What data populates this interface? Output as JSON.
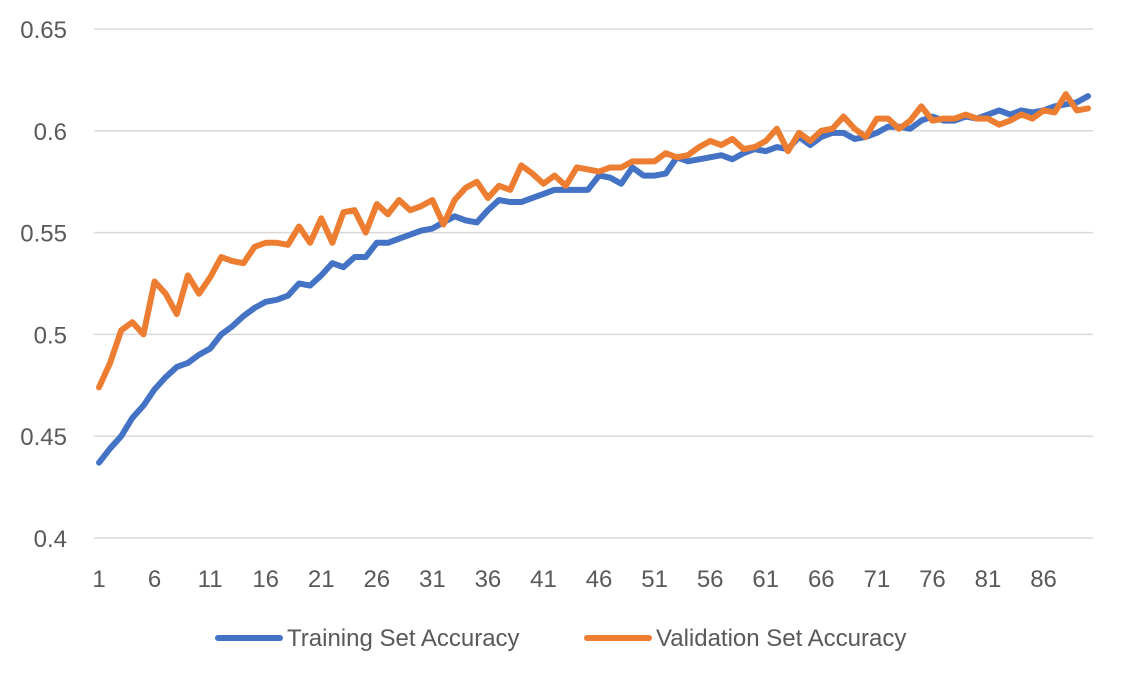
{
  "chart_data": {
    "type": "line",
    "title": "",
    "xlabel": "",
    "ylabel": "",
    "ylim": [
      0.4,
      0.65
    ],
    "yticks": [
      "0.4",
      "0.45",
      "0.5",
      "0.55",
      "0.6",
      "0.65"
    ],
    "ytick_values": [
      0.4,
      0.45,
      0.5,
      0.55,
      0.6,
      0.65
    ],
    "xlim": [
      1,
      90
    ],
    "xticks": [
      "1",
      "6",
      "11",
      "16",
      "21",
      "26",
      "31",
      "36",
      "41",
      "46",
      "51",
      "56",
      "61",
      "66",
      "71",
      "76",
      "81",
      "86"
    ],
    "xtick_values": [
      1,
      6,
      11,
      16,
      21,
      26,
      31,
      36,
      41,
      46,
      51,
      56,
      61,
      66,
      71,
      76,
      81,
      86
    ],
    "grid": true,
    "legend_position": "bottom",
    "series": [
      {
        "name": "Training Set Accuracy",
        "color": "#4472c4",
        "x": [
          1,
          2,
          3,
          4,
          5,
          6,
          7,
          8,
          9,
          10,
          11,
          12,
          13,
          14,
          15,
          16,
          17,
          18,
          19,
          20,
          21,
          22,
          23,
          24,
          25,
          26,
          27,
          28,
          29,
          30,
          31,
          32,
          33,
          34,
          35,
          36,
          37,
          38,
          39,
          40,
          41,
          42,
          43,
          44,
          45,
          46,
          47,
          48,
          49,
          50,
          51,
          52,
          53,
          54,
          55,
          56,
          57,
          58,
          59,
          60,
          61,
          62,
          63,
          64,
          65,
          66,
          67,
          68,
          69,
          70,
          71,
          72,
          73,
          74,
          75,
          76,
          77,
          78,
          79,
          80,
          81,
          82,
          83,
          84,
          85,
          86,
          87,
          88,
          89,
          90
        ],
        "values": [
          0.437,
          0.444,
          0.45,
          0.459,
          0.465,
          0.473,
          0.479,
          0.484,
          0.486,
          0.49,
          0.493,
          0.5,
          0.504,
          0.509,
          0.513,
          0.516,
          0.517,
          0.519,
          0.525,
          0.524,
          0.529,
          0.535,
          0.533,
          0.538,
          0.538,
          0.545,
          0.545,
          0.547,
          0.549,
          0.551,
          0.552,
          0.555,
          0.558,
          0.556,
          0.555,
          0.561,
          0.566,
          0.565,
          0.565,
          0.567,
          0.569,
          0.571,
          0.571,
          0.571,
          0.571,
          0.578,
          0.577,
          0.574,
          0.582,
          0.578,
          0.578,
          0.579,
          0.587,
          0.585,
          0.586,
          0.587,
          0.588,
          0.586,
          0.589,
          0.591,
          0.59,
          0.592,
          0.591,
          0.597,
          0.593,
          0.597,
          0.599,
          0.599,
          0.596,
          0.597,
          0.599,
          0.602,
          0.602,
          0.601,
          0.605,
          0.607,
          0.605,
          0.605,
          0.607,
          0.606,
          0.608,
          0.61,
          0.608,
          0.61,
          0.609,
          0.61,
          0.612,
          0.613,
          0.614,
          0.617
        ]
      },
      {
        "name": "Validation Set Accuracy",
        "color": "#ed7d31",
        "x": [
          1,
          2,
          3,
          4,
          5,
          6,
          7,
          8,
          9,
          10,
          11,
          12,
          13,
          14,
          15,
          16,
          17,
          18,
          19,
          20,
          21,
          22,
          23,
          24,
          25,
          26,
          27,
          28,
          29,
          30,
          31,
          32,
          33,
          34,
          35,
          36,
          37,
          38,
          39,
          40,
          41,
          42,
          43,
          44,
          45,
          46,
          47,
          48,
          49,
          50,
          51,
          52,
          53,
          54,
          55,
          56,
          57,
          58,
          59,
          60,
          61,
          62,
          63,
          64,
          65,
          66,
          67,
          68,
          69,
          70,
          71,
          72,
          73,
          74,
          75,
          76,
          77,
          78,
          79,
          80,
          81,
          82,
          83,
          84,
          85,
          86,
          87,
          88,
          89,
          90
        ],
        "values": [
          0.474,
          0.486,
          0.502,
          0.506,
          0.5,
          0.526,
          0.52,
          0.51,
          0.529,
          0.52,
          0.528,
          0.538,
          0.536,
          0.535,
          0.543,
          0.545,
          0.545,
          0.544,
          0.553,
          0.545,
          0.557,
          0.545,
          0.56,
          0.561,
          0.55,
          0.564,
          0.559,
          0.566,
          0.561,
          0.563,
          0.566,
          0.554,
          0.566,
          0.572,
          0.575,
          0.567,
          0.573,
          0.571,
          0.583,
          0.579,
          0.574,
          0.578,
          0.573,
          0.582,
          0.581,
          0.58,
          0.582,
          0.582,
          0.585,
          0.585,
          0.585,
          0.589,
          0.587,
          0.588,
          0.592,
          0.595,
          0.593,
          0.596,
          0.591,
          0.592,
          0.595,
          0.601,
          0.59,
          0.599,
          0.595,
          0.6,
          0.601,
          0.607,
          0.601,
          0.597,
          0.606,
          0.606,
          0.601,
          0.605,
          0.612,
          0.605,
          0.606,
          0.606,
          0.608,
          0.606,
          0.606,
          0.603,
          0.605,
          0.608,
          0.606,
          0.61,
          0.609,
          0.618,
          0.61,
          0.611
        ]
      }
    ]
  }
}
